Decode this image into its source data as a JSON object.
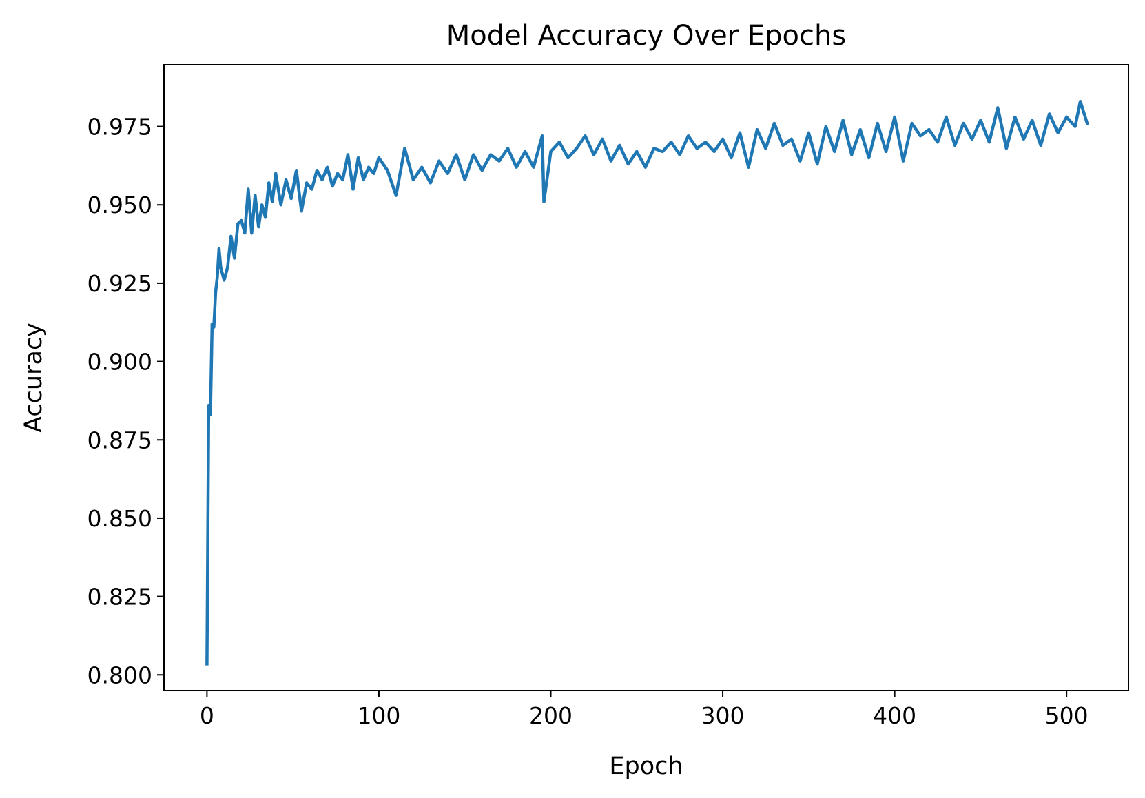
{
  "chart_data": {
    "type": "line",
    "title": "Model Accuracy Over Epochs",
    "xlabel": "Epoch",
    "ylabel": "Accuracy",
    "xlim": [
      -25,
      536
    ],
    "ylim": [
      0.795,
      0.9947
    ],
    "xticks": [
      0,
      100,
      200,
      300,
      400,
      500
    ],
    "xtick_labels": [
      "0",
      "100",
      "200",
      "300",
      "400",
      "500"
    ],
    "yticks": [
      0.8,
      0.825,
      0.85,
      0.875,
      0.9,
      0.925,
      0.95,
      0.975
    ],
    "ytick_labels": [
      "0.800",
      "0.825",
      "0.850",
      "0.875",
      "0.900",
      "0.925",
      "0.950",
      "0.975"
    ],
    "grid": false,
    "legend": "none",
    "colors": {
      "series": "#1f77b4",
      "axes": "#000000",
      "background": "#ffffff"
    },
    "series": [
      {
        "x": [
          0,
          1,
          2,
          3,
          4,
          5,
          6,
          7,
          8,
          10,
          12,
          14,
          16,
          18,
          20,
          22,
          24,
          26,
          28,
          30,
          32,
          34,
          36,
          38,
          40,
          43,
          46,
          49,
          52,
          55,
          58,
          61,
          64,
          67,
          70,
          73,
          76,
          79,
          82,
          85,
          88,
          91,
          94,
          97,
          100,
          105,
          110,
          115,
          120,
          125,
          130,
          135,
          140,
          145,
          150,
          155,
          160,
          165,
          170,
          175,
          180,
          185,
          190,
          195,
          196,
          200,
          205,
          210,
          215,
          220,
          225,
          230,
          235,
          240,
          245,
          250,
          255,
          260,
          265,
          270,
          275,
          280,
          285,
          290,
          295,
          300,
          305,
          310,
          315,
          320,
          325,
          330,
          335,
          340,
          345,
          350,
          355,
          360,
          365,
          370,
          375,
          380,
          385,
          390,
          395,
          400,
          405,
          410,
          415,
          420,
          425,
          430,
          435,
          440,
          445,
          450,
          455,
          460,
          465,
          470,
          475,
          480,
          485,
          490,
          495,
          500,
          505,
          508,
          512
        ],
        "y": [
          0.8035,
          0.886,
          0.883,
          0.912,
          0.911,
          0.922,
          0.927,
          0.936,
          0.93,
          0.926,
          0.93,
          0.94,
          0.933,
          0.944,
          0.945,
          0.941,
          0.955,
          0.941,
          0.953,
          0.943,
          0.95,
          0.946,
          0.957,
          0.951,
          0.96,
          0.95,
          0.958,
          0.952,
          0.961,
          0.948,
          0.957,
          0.955,
          0.961,
          0.958,
          0.962,
          0.956,
          0.96,
          0.958,
          0.966,
          0.955,
          0.965,
          0.958,
          0.962,
          0.96,
          0.965,
          0.961,
          0.953,
          0.968,
          0.958,
          0.962,
          0.957,
          0.964,
          0.96,
          0.966,
          0.958,
          0.966,
          0.961,
          0.966,
          0.964,
          0.968,
          0.962,
          0.967,
          0.962,
          0.972,
          0.951,
          0.967,
          0.97,
          0.965,
          0.968,
          0.972,
          0.966,
          0.971,
          0.964,
          0.969,
          0.963,
          0.967,
          0.962,
          0.968,
          0.967,
          0.97,
          0.966,
          0.972,
          0.968,
          0.97,
          0.967,
          0.971,
          0.965,
          0.973,
          0.962,
          0.974,
          0.968,
          0.976,
          0.969,
          0.971,
          0.964,
          0.973,
          0.963,
          0.975,
          0.967,
          0.977,
          0.966,
          0.974,
          0.965,
          0.976,
          0.967,
          0.978,
          0.964,
          0.976,
          0.972,
          0.974,
          0.97,
          0.978,
          0.969,
          0.976,
          0.971,
          0.977,
          0.97,
          0.981,
          0.968,
          0.978,
          0.971,
          0.977,
          0.969,
          0.979,
          0.973,
          0.978,
          0.975,
          0.983,
          0.976
        ]
      }
    ]
  }
}
